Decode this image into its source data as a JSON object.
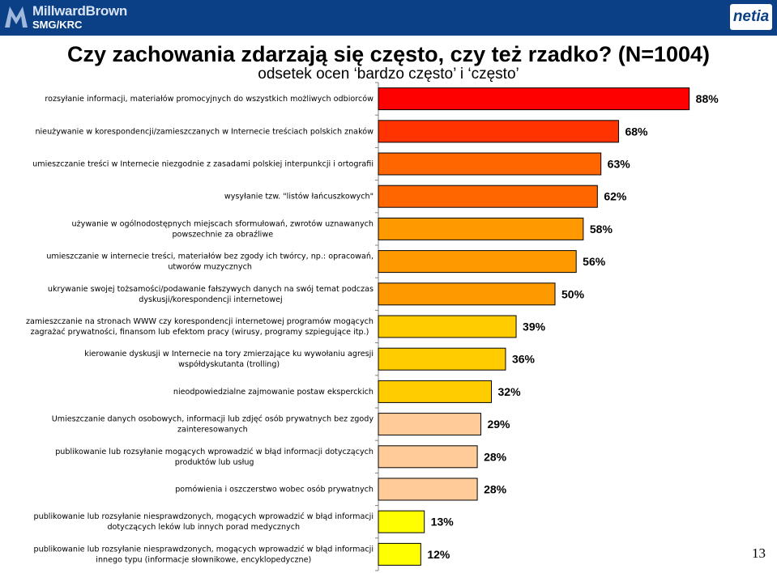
{
  "header": {
    "logo_brand": "MillwardBrown",
    "logo_sub": "SMG/KRC",
    "logo_right": "netia"
  },
  "title": "Czy zachowania zdarzają się często, czy też rzadko? (N=1004)",
  "subtitle": "odsetek ocen ‘bardzo często’ i ‘często’",
  "page_number": "13",
  "chart_data": {
    "type": "bar",
    "orientation": "horizontal",
    "xlim": [
      0,
      100
    ],
    "categories": [
      [
        "rozsyłanie informacji, materiałów promocyjnych do wszystkich możliwych odbiorców"
      ],
      [
        "nieużywanie w korespondencji/zamieszczanych w Internecie treściach polskich znaków"
      ],
      [
        "umieszczanie treści w Internecie niezgodnie z zasadami polskiej interpunkcji i ortografii"
      ],
      [
        "wysyłanie tzw. \"listów łańcuszkowych\""
      ],
      [
        "używanie w ogólnodostępnych miejscach sformułowań, zwrotów uznawanych",
        "powszechnie za obraźliwe"
      ],
      [
        "umieszczanie w internecie treści, materiałów bez zgody ich twórcy, np.: opracowań,",
        "utworów muzycznych"
      ],
      [
        "ukrywanie swojej tożsamości/podawanie fałszywych danych na swój temat podczas",
        "dyskusji/korespondencji internetowej"
      ],
      [
        "zamieszczanie na stronach WWW czy korespondencji internetowej programów mogących",
        "zagrażać prywatności, finansom lub efektom pracy (wirusy, programy szpiegujące itp.)"
      ],
      [
        "kierowanie dyskusji w Internecie na tory zmierzające ku wywołaniu agresji",
        "współdyskutanta (trolling)"
      ],
      [
        "nieodpowiedzialne zajmowanie postaw eksperckich"
      ],
      [
        "Umieszczanie danych osobowych, informacji lub zdjęć osób prywatnych bez zgody",
        "zainteresowanych"
      ],
      [
        "publikowanie lub rozsyłanie mogących wprowadzić w błąd informacji dotyczących",
        "produktów lub usług"
      ],
      [
        "pomówienia i oszczerstwo wobec osób prywatnych"
      ],
      [
        "publikowanie lub rozsyłanie niesprawdzonych, mogących wprowadzić w błąd informacji",
        "dotyczących leków lub innych porad medycznych"
      ],
      [
        "publikowanie lub rozsyłanie niesprawdzonych, mogących wprowadzić w błąd informacji",
        "innego typu (informacje słownikowe, encyklopedyczne)"
      ]
    ],
    "values": [
      88,
      68,
      63,
      62,
      58,
      56,
      50,
      39,
      36,
      32,
      29,
      28,
      28,
      13,
      12
    ],
    "value_labels": [
      "88%",
      "68%",
      "63%",
      "62%",
      "58%",
      "56%",
      "50%",
      "39%",
      "36%",
      "32%",
      "29%",
      "28%",
      "28%",
      "13%",
      "12%"
    ],
    "colors": [
      "#ff0000",
      "#ff3300",
      "#ff6600",
      "#ff6600",
      "#ff9900",
      "#ff9900",
      "#ff9900",
      "#ffcc00",
      "#ffcc00",
      "#ffcc00",
      "#ffcc99",
      "#ffcc99",
      "#ffcc99",
      "#ffff00",
      "#ffff00"
    ],
    "grid": false,
    "legend": "none"
  }
}
